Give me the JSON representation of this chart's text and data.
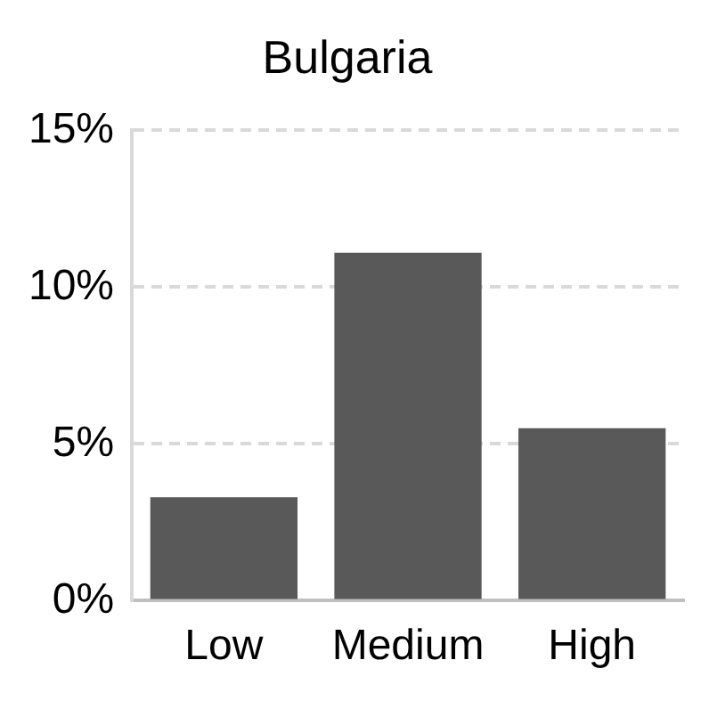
{
  "chart_data": {
    "type": "bar",
    "title": "Bulgaria",
    "categories": [
      "Low",
      "Medium",
      "High"
    ],
    "values": [
      3.3,
      11.1,
      5.5
    ],
    "color": "#595959",
    "ylim": [
      0,
      15
    ],
    "yticks": [
      {
        "value": 0,
        "label": "0%"
      },
      {
        "value": 5,
        "label": "5%"
      },
      {
        "value": 10,
        "label": "10%"
      },
      {
        "value": 15,
        "label": "15%"
      }
    ],
    "grid": "y",
    "legend": false
  }
}
